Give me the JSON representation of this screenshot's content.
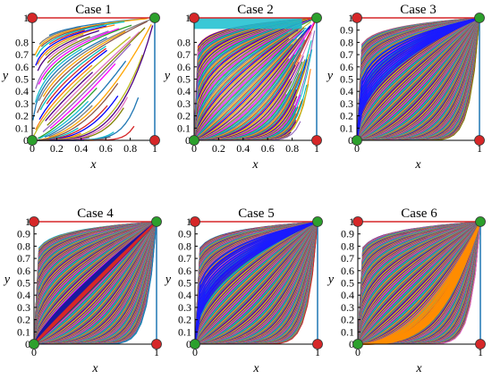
{
  "chart_data": [
    {
      "type": "line",
      "title": "Case 1",
      "xlabel": "x",
      "ylabel": "y",
      "xlim": [
        0,
        1
      ],
      "ylim": [
        0,
        1
      ],
      "x_ticks": [
        "0",
        "0.2",
        "0.4",
        "0.6",
        "0.8",
        "1"
      ],
      "y_ticks": [
        "0",
        "0.1",
        "0.2",
        "0.3",
        "0.4",
        "0.5",
        "0.6",
        "0.7",
        "0.8",
        "1"
      ],
      "density": "sparse",
      "corner_markers": {
        "top_left": "#d62728",
        "top_right": "#2ca02c",
        "bottom_left": "#2ca02c",
        "bottom_right": "#d62728"
      },
      "highlight": null
    },
    {
      "type": "line",
      "title": "Case 2",
      "xlabel": "x",
      "ylabel": "y",
      "xlim": [
        0,
        1
      ],
      "ylim": [
        0,
        1
      ],
      "x_ticks": [
        "0",
        "0.2",
        "0.4",
        "0.6",
        "0.8",
        "1"
      ],
      "y_ticks": [
        "0",
        "0.1",
        "0.2",
        "0.3",
        "0.4",
        "0.5",
        "0.6",
        "0.7",
        "0.8",
        "1"
      ],
      "density": "medium",
      "corner_markers": {
        "top_left": "#d62728",
        "top_right": "#2ca02c",
        "bottom_left": "#2ca02c",
        "bottom_right": "#d62728"
      },
      "highlight": "top-band-cyan"
    },
    {
      "type": "line",
      "title": "Case 3",
      "xlabel": "x",
      "ylabel": "y",
      "xlim": [
        0,
        1
      ],
      "ylim": [
        0,
        1
      ],
      "x_ticks": [
        "0",
        "1"
      ],
      "y_ticks": [
        "0",
        "0.1",
        "0.2",
        "0.3",
        "0.4",
        "0.5",
        "0.6",
        "0.7",
        "0.8",
        "0.9",
        "1"
      ],
      "density": "dense",
      "corner_markers": {
        "top_left": "#d62728",
        "top_right": "#2ca02c",
        "bottom_left": "#2ca02c",
        "bottom_right": "#d62728"
      },
      "highlight": "upper-left-blue"
    },
    {
      "type": "line",
      "title": "Case 4",
      "xlabel": "x",
      "ylabel": "y",
      "xlim": [
        0,
        1
      ],
      "ylim": [
        0,
        1
      ],
      "x_ticks": [
        "0",
        "1"
      ],
      "y_ticks": [
        "0",
        "0.1",
        "0.2",
        "0.3",
        "0.4",
        "0.5",
        "0.6",
        "0.7",
        "0.8",
        "0.9",
        "1"
      ],
      "density": "dense",
      "corner_markers": {
        "top_left": "#d62728",
        "top_right": "#2ca02c",
        "bottom_left": "#2ca02c",
        "bottom_right": "#d62728"
      },
      "highlight": "diagonal-blue-red"
    },
    {
      "type": "line",
      "title": "Case 5",
      "xlabel": "x",
      "ylabel": "y",
      "xlim": [
        0,
        1
      ],
      "ylim": [
        0,
        1
      ],
      "x_ticks": [
        "0",
        "1"
      ],
      "y_ticks": [
        "0",
        "0.1",
        "0.2",
        "0.3",
        "0.4",
        "0.5",
        "0.6",
        "0.7",
        "0.8",
        "0.9",
        "1"
      ],
      "density": "dense",
      "corner_markers": {
        "top_left": "#d62728",
        "top_right": "#2ca02c",
        "bottom_left": "#2ca02c",
        "bottom_right": "#d62728"
      },
      "highlight": "upper-left-blue"
    },
    {
      "type": "line",
      "title": "Case 6",
      "xlabel": "x",
      "ylabel": "y",
      "xlim": [
        0,
        1
      ],
      "ylim": [
        0,
        1
      ],
      "x_ticks": [
        "0",
        "1"
      ],
      "y_ticks": [
        "0",
        "0.1",
        "0.2",
        "0.3",
        "0.4",
        "0.5",
        "0.6",
        "0.7",
        "0.8",
        "0.9",
        "1"
      ],
      "density": "dense",
      "corner_markers": {
        "top_left": "#d62728",
        "top_right": "#2ca02c",
        "bottom_left": "#2ca02c",
        "bottom_right": "#d62728"
      },
      "highlight": "lower-right-orange"
    }
  ],
  "palette": [
    "#1f77b4",
    "#ff7f0e",
    "#2ca02c",
    "#d62728",
    "#9467bd",
    "#8c564b",
    "#e377c2",
    "#7f7f7f",
    "#bcbd22",
    "#17becf",
    "#0000ff",
    "#ff00ff",
    "#00c0c0",
    "#808000",
    "#ffa500",
    "#4b0082"
  ]
}
